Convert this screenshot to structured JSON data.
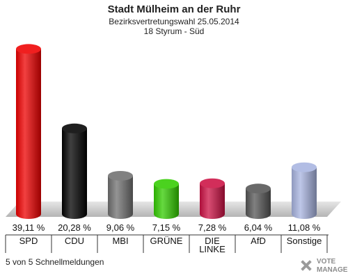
{
  "chart_data": {
    "type": "bar",
    "title": "Stadt Mülheim an der Ruhr",
    "subtitle_lines": [
      "Bezirksvertretungswahl 25.05.2014",
      "18 Styrum - Süd"
    ],
    "categories": [
      "SPD",
      "CDU",
      "MBI",
      "GRÜNE",
      "DIE LINKE",
      "AfD",
      "Sonstige"
    ],
    "category_label_lines": [
      [
        "SPD"
      ],
      [
        "CDU"
      ],
      [
        "MBI"
      ],
      [
        "GRÜNE"
      ],
      [
        "DIE",
        "LINKE"
      ],
      [
        "AfD"
      ],
      [
        "Sonstige"
      ]
    ],
    "values": [
      39.11,
      20.28,
      9.06,
      7.15,
      7.28,
      6.04,
      11.08
    ],
    "value_labels": [
      "39,11 %",
      "20,28 %",
      "9,06 %",
      "7,15 %",
      "7,28 %",
      "6,04 %",
      "11,08 %"
    ],
    "colors": [
      "#ee0000",
      "#000000",
      "#707070",
      "#33cc00",
      "#cc1144",
      "#555555",
      "#a8b4e0"
    ],
    "ylim": [
      0,
      40
    ],
    "xlabel": "",
    "ylabel": "",
    "grid": false
  },
  "footer": {
    "note": "5 von 5 Schnellmeldungen",
    "logo_lines": [
      "VOTE",
      "MANAGER"
    ]
  }
}
